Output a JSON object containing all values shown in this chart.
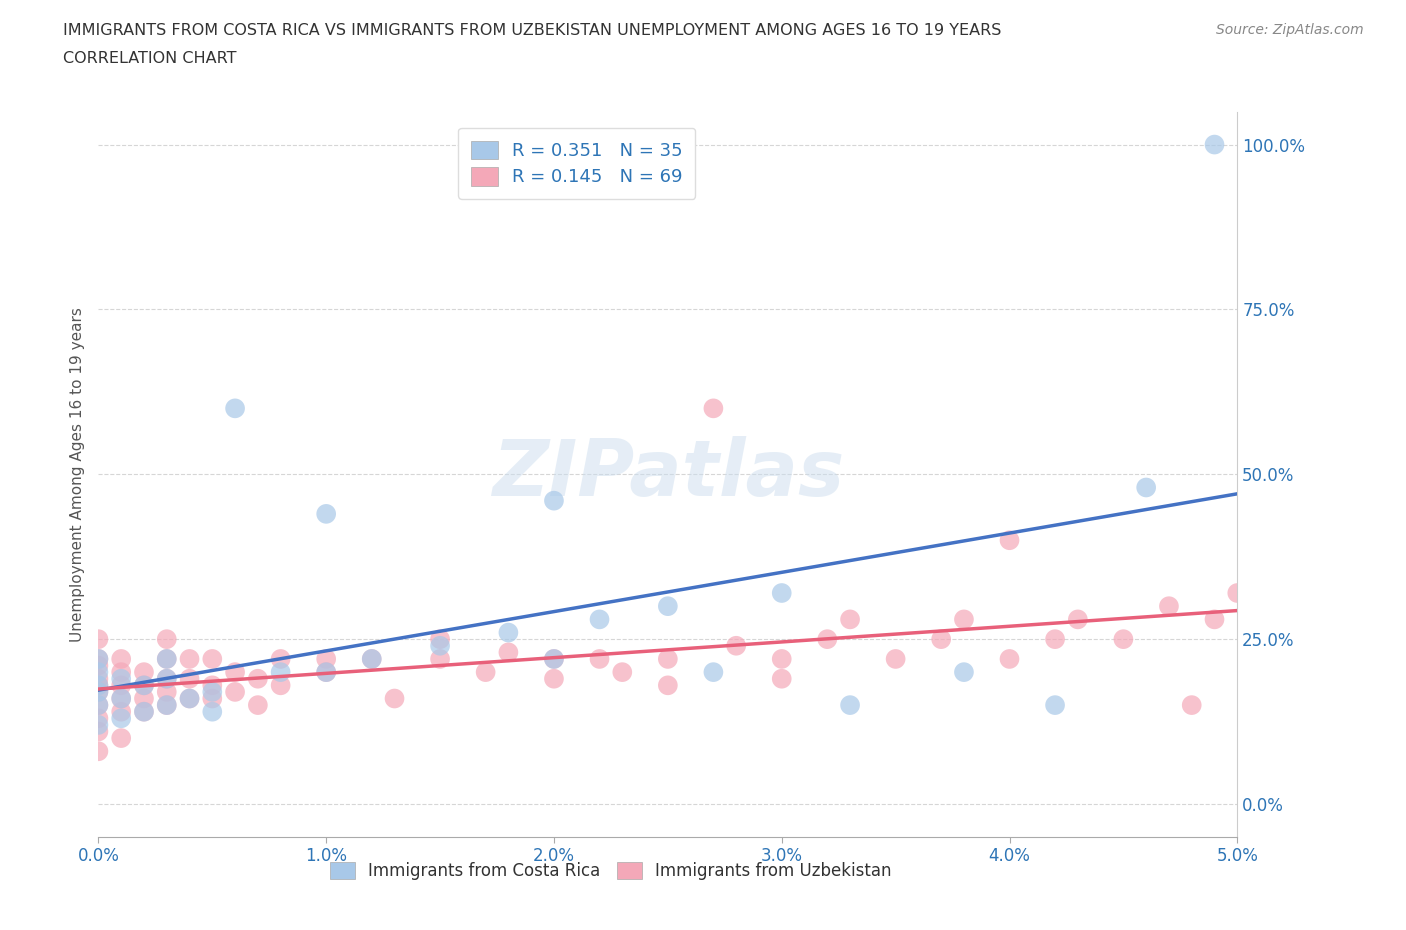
{
  "title_line1": "IMMIGRANTS FROM COSTA RICA VS IMMIGRANTS FROM UZBEKISTAN UNEMPLOYMENT AMONG AGES 16 TO 19 YEARS",
  "title_line2": "CORRELATION CHART",
  "source_text": "Source: ZipAtlas.com",
  "ylabel": "Unemployment Among Ages 16 to 19 years",
  "xlim": [
    0.0,
    0.05
  ],
  "ylim": [
    -0.05,
    1.05
  ],
  "xticks": [
    0.0,
    0.01,
    0.02,
    0.03,
    0.04,
    0.05
  ],
  "yticks": [
    0.0,
    0.25,
    0.5,
    0.75,
    1.0
  ],
  "xticklabels": [
    "0.0%",
    "1.0%",
    "2.0%",
    "3.0%",
    "4.0%",
    "5.0%"
  ],
  "yticklabels": [
    "0.0%",
    "25.0%",
    "50.0%",
    "75.0%",
    "100.0%"
  ],
  "costa_rica_R": 0.351,
  "costa_rica_N": 35,
  "uzbekistan_R": 0.145,
  "uzbekistan_N": 69,
  "costa_rica_color": "#A8C8E8",
  "uzbekistan_color": "#F4A8B8",
  "costa_rica_line_color": "#4472C4",
  "uzbekistan_line_color": "#E8607A",
  "legend_R_N_color": "#2E75B6",
  "ytick_color": "#2E75B6",
  "xtick_color": "#2E75B6",
  "watermark": "ZIPatlas",
  "costa_rica_x": [
    0.0,
    0.0,
    0.0,
    0.0,
    0.0,
    0.0,
    0.001,
    0.001,
    0.001,
    0.002,
    0.002,
    0.003,
    0.003,
    0.003,
    0.004,
    0.005,
    0.005,
    0.006,
    0.008,
    0.01,
    0.01,
    0.012,
    0.015,
    0.018,
    0.02,
    0.02,
    0.022,
    0.025,
    0.027,
    0.03,
    0.033,
    0.038,
    0.042,
    0.046,
    0.049
  ],
  "costa_rica_y": [
    0.15,
    0.18,
    0.2,
    0.22,
    0.17,
    0.12,
    0.13,
    0.16,
    0.19,
    0.14,
    0.18,
    0.15,
    0.19,
    0.22,
    0.16,
    0.14,
    0.17,
    0.6,
    0.2,
    0.2,
    0.44,
    0.22,
    0.24,
    0.26,
    0.22,
    0.46,
    0.28,
    0.3,
    0.2,
    0.32,
    0.15,
    0.2,
    0.15,
    0.48,
    1.0
  ],
  "uzbekistan_x": [
    0.0,
    0.0,
    0.0,
    0.0,
    0.0,
    0.0,
    0.0,
    0.0,
    0.0,
    0.0,
    0.001,
    0.001,
    0.001,
    0.001,
    0.001,
    0.001,
    0.002,
    0.002,
    0.002,
    0.002,
    0.003,
    0.003,
    0.003,
    0.003,
    0.003,
    0.004,
    0.004,
    0.004,
    0.005,
    0.005,
    0.005,
    0.006,
    0.006,
    0.007,
    0.007,
    0.008,
    0.008,
    0.01,
    0.01,
    0.012,
    0.013,
    0.015,
    0.015,
    0.017,
    0.018,
    0.02,
    0.02,
    0.022,
    0.023,
    0.025,
    0.025,
    0.027,
    0.028,
    0.03,
    0.03,
    0.032,
    0.033,
    0.035,
    0.037,
    0.038,
    0.04,
    0.04,
    0.042,
    0.043,
    0.045,
    0.047,
    0.048,
    0.049,
    0.05
  ],
  "uzbekistan_y": [
    0.15,
    0.17,
    0.19,
    0.21,
    0.13,
    0.11,
    0.08,
    0.18,
    0.22,
    0.25,
    0.16,
    0.18,
    0.2,
    0.14,
    0.22,
    0.1,
    0.14,
    0.16,
    0.18,
    0.2,
    0.15,
    0.17,
    0.19,
    0.22,
    0.25,
    0.16,
    0.19,
    0.22,
    0.16,
    0.18,
    0.22,
    0.17,
    0.2,
    0.15,
    0.19,
    0.18,
    0.22,
    0.2,
    0.22,
    0.22,
    0.16,
    0.22,
    0.25,
    0.2,
    0.23,
    0.19,
    0.22,
    0.22,
    0.2,
    0.22,
    0.18,
    0.6,
    0.24,
    0.19,
    0.22,
    0.25,
    0.28,
    0.22,
    0.25,
    0.28,
    0.22,
    0.4,
    0.25,
    0.28,
    0.25,
    0.3,
    0.15,
    0.28,
    0.32
  ]
}
